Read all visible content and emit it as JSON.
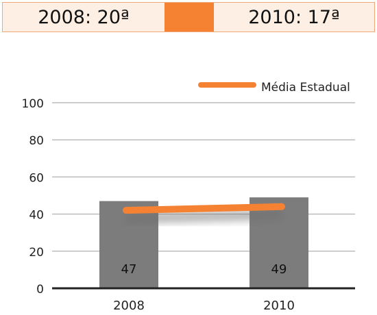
{
  "header": {
    "rank_2008": "2008: 20ª",
    "rank_2010": "2010: 17ª"
  },
  "colors": {
    "bar": "#7c7c7c",
    "line": "#f58233",
    "grid": "#bcbcbc",
    "header_fill": "#fdefe3",
    "header_accent": "#f58233"
  },
  "chart_data": {
    "type": "bar",
    "categories": [
      "2008",
      "2010"
    ],
    "series": [
      {
        "values": [
          47,
          49
        ],
        "data_labels": [
          "47",
          "49"
        ]
      },
      {
        "name": "Média Estadual",
        "type": "line",
        "values": [
          42,
          44
        ]
      }
    ],
    "yticks": [
      0,
      20,
      40,
      60,
      80,
      100
    ],
    "ylim": [
      0,
      100
    ],
    "grid": true,
    "legend": {
      "position": "top-right",
      "entries": [
        "Média Estadual"
      ]
    }
  }
}
